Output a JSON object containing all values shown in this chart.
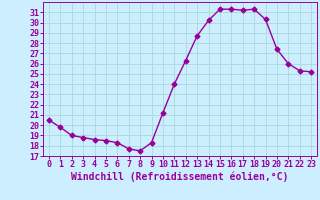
{
  "x": [
    0,
    1,
    2,
    3,
    4,
    5,
    6,
    7,
    8,
    9,
    10,
    11,
    12,
    13,
    14,
    15,
    16,
    17,
    18,
    19,
    20,
    21,
    22,
    23
  ],
  "y": [
    20.5,
    19.8,
    19.0,
    18.8,
    18.6,
    18.5,
    18.3,
    17.7,
    17.5,
    18.3,
    21.2,
    24.0,
    26.3,
    28.7,
    30.2,
    31.3,
    31.3,
    31.2,
    31.3,
    30.3,
    27.4,
    26.0,
    25.3,
    25.2
  ],
  "line_color": "#990099",
  "marker": "D",
  "markersize": 2.5,
  "linewidth": 1.0,
  "bg_color": "#cceeff",
  "grid_color": "#aadddd",
  "xlabel": "Windchill (Refroidissement éolien,°C)",
  "xlim": [
    -0.5,
    23.5
  ],
  "ylim": [
    17,
    32
  ],
  "yticks": [
    17,
    18,
    19,
    20,
    21,
    22,
    23,
    24,
    25,
    26,
    27,
    28,
    29,
    30,
    31
  ],
  "xticks": [
    0,
    1,
    2,
    3,
    4,
    5,
    6,
    7,
    8,
    9,
    10,
    11,
    12,
    13,
    14,
    15,
    16,
    17,
    18,
    19,
    20,
    21,
    22,
    23
  ],
  "tick_color": "#990099",
  "label_color": "#990099",
  "xlabel_fontsize": 7,
  "tick_fontsize": 6
}
